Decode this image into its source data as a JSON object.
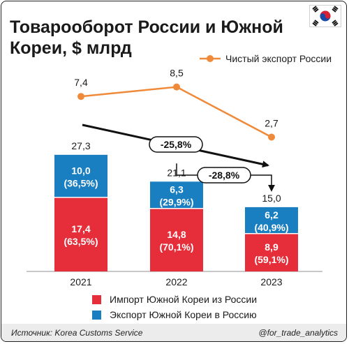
{
  "title": "Товарооборот России и Южной Кореи, $ млрд",
  "source": "Источник: Korea Customs Service",
  "handle": "@for_trade_analytics",
  "colors": {
    "import": "#e62d3a",
    "export": "#1a7fc1",
    "net_export": "#ef8a3a",
    "arrow": "#111111"
  },
  "chart_data": {
    "type": "bar",
    "stacked": true,
    "categories": [
      "2021",
      "2022",
      "2023"
    ],
    "series": [
      {
        "name": "Импорт Южной Кореи из России",
        "values": [
          17.4,
          14.8,
          8.9
        ],
        "labels": [
          "17,4",
          "14,8",
          "8,9"
        ],
        "shares": [
          "(63,5%)",
          "(70,1%)",
          "(59,1%)"
        ]
      },
      {
        "name": "Экспорт Южной Кореи в Россию",
        "values": [
          10.0,
          6.3,
          6.2
        ],
        "labels": [
          "10,0",
          "6,3",
          "6,2"
        ],
        "shares": [
          "(36,5%)",
          "(29,9%)",
          "(40,9%)"
        ]
      }
    ],
    "totals": [
      27.3,
      21.1,
      15.0
    ],
    "total_labels": [
      "27,3",
      "21,1",
      "15,0"
    ],
    "line": {
      "name": "Чистый экспорт России",
      "values": [
        7.4,
        8.5,
        2.7
      ],
      "labels": [
        "7,4",
        "8,5",
        "2,7"
      ]
    },
    "annotations": [
      {
        "text": "-25,8%",
        "from": "2021",
        "to": "2023"
      },
      {
        "text": "-28,8%",
        "from": "2022",
        "to": "2023"
      }
    ],
    "legend_position": "bottom",
    "line_legend_position": "top-right"
  }
}
